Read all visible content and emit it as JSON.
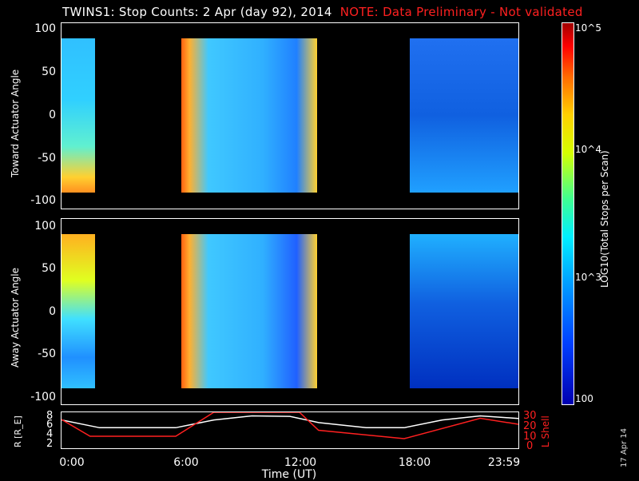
{
  "header": {
    "title": "TWINS1: Stop Counts:  2 Apr (day  92), 2014",
    "note": "NOTE: Data Preliminary - Not validated"
  },
  "panels": {
    "top_ylabel": "Toward Actuator Angle",
    "bottom_ylabel": "Away Actuator Angle",
    "y_ticks": [
      "100",
      "50",
      "0",
      "-50",
      "-100"
    ],
    "bottom_panel_left_label": "R [R_E]",
    "bottom_panel_right_label": "L Shell",
    "bottom_left_ticks": [
      "8",
      "6",
      "4",
      "2"
    ],
    "bottom_right_ticks": [
      "30",
      "20",
      "10",
      "0"
    ]
  },
  "x_axis": {
    "ticks": [
      "0:00",
      "6:00",
      "12:00",
      "18:00",
      "23:59"
    ],
    "label": "Time (UT)"
  },
  "colorbar": {
    "label": "LOG10(Total Stops per Scan)",
    "ticks": [
      "10^5",
      "10^4",
      "10^3",
      "100"
    ]
  },
  "footer_date": "17 Apr 14",
  "colors": {
    "note": "#ff2020",
    "background": "#000000",
    "white_line": "#ffffff",
    "red_line": "#ff2020"
  },
  "chart_data": [
    {
      "type": "heatmap",
      "title": "TWINS1: Stop Counts:  2 Apr (day  92), 2014",
      "xlabel": "Time (UT)",
      "ylabel": "Toward Actuator Angle",
      "xlim": [
        0,
        24
      ],
      "ylim": [
        -100,
        100
      ],
      "colorbar": {
        "label": "LOG10(Total Stops per Scan)",
        "range": [
          100,
          100000
        ],
        "scale": "log"
      },
      "data_segments_hours": [
        [
          0.0,
          1.7
        ],
        [
          6.3,
          13.6
        ],
        [
          18.3,
          23.98
        ]
      ]
    },
    {
      "type": "heatmap",
      "xlabel": "Time (UT)",
      "ylabel": "Away Actuator Angle",
      "xlim": [
        0,
        24
      ],
      "ylim": [
        -100,
        100
      ],
      "colorbar": {
        "label": "LOG10(Total Stops per Scan)",
        "range": [
          100,
          100000
        ],
        "scale": "log"
      },
      "data_segments_hours": [
        [
          0.0,
          1.7
        ],
        [
          6.3,
          13.6
        ],
        [
          18.3,
          23.98
        ]
      ]
    },
    {
      "type": "line",
      "xlabel": "Time (UT)",
      "xlim": [
        0,
        24
      ],
      "series": [
        {
          "name": "R [R_E]",
          "axis": "left",
          "ylim": [
            1,
            8
          ],
          "x": [
            0,
            2,
            4,
            6,
            8,
            10,
            12,
            13.5,
            16,
            18,
            20,
            22,
            24
          ],
          "y": [
            6.5,
            5,
            5,
            5,
            6.5,
            7.3,
            7.2,
            6,
            5,
            5,
            6.5,
            7.3,
            6.8
          ]
        },
        {
          "name": "L Shell",
          "axis": "right",
          "ylim": [
            0,
            30
          ],
          "x": [
            0,
            1.5,
            6,
            8,
            12.5,
            13.5,
            18,
            22,
            24
          ],
          "y": [
            24,
            10,
            10,
            30,
            30,
            15,
            8,
            25,
            20
          ]
        }
      ]
    }
  ]
}
